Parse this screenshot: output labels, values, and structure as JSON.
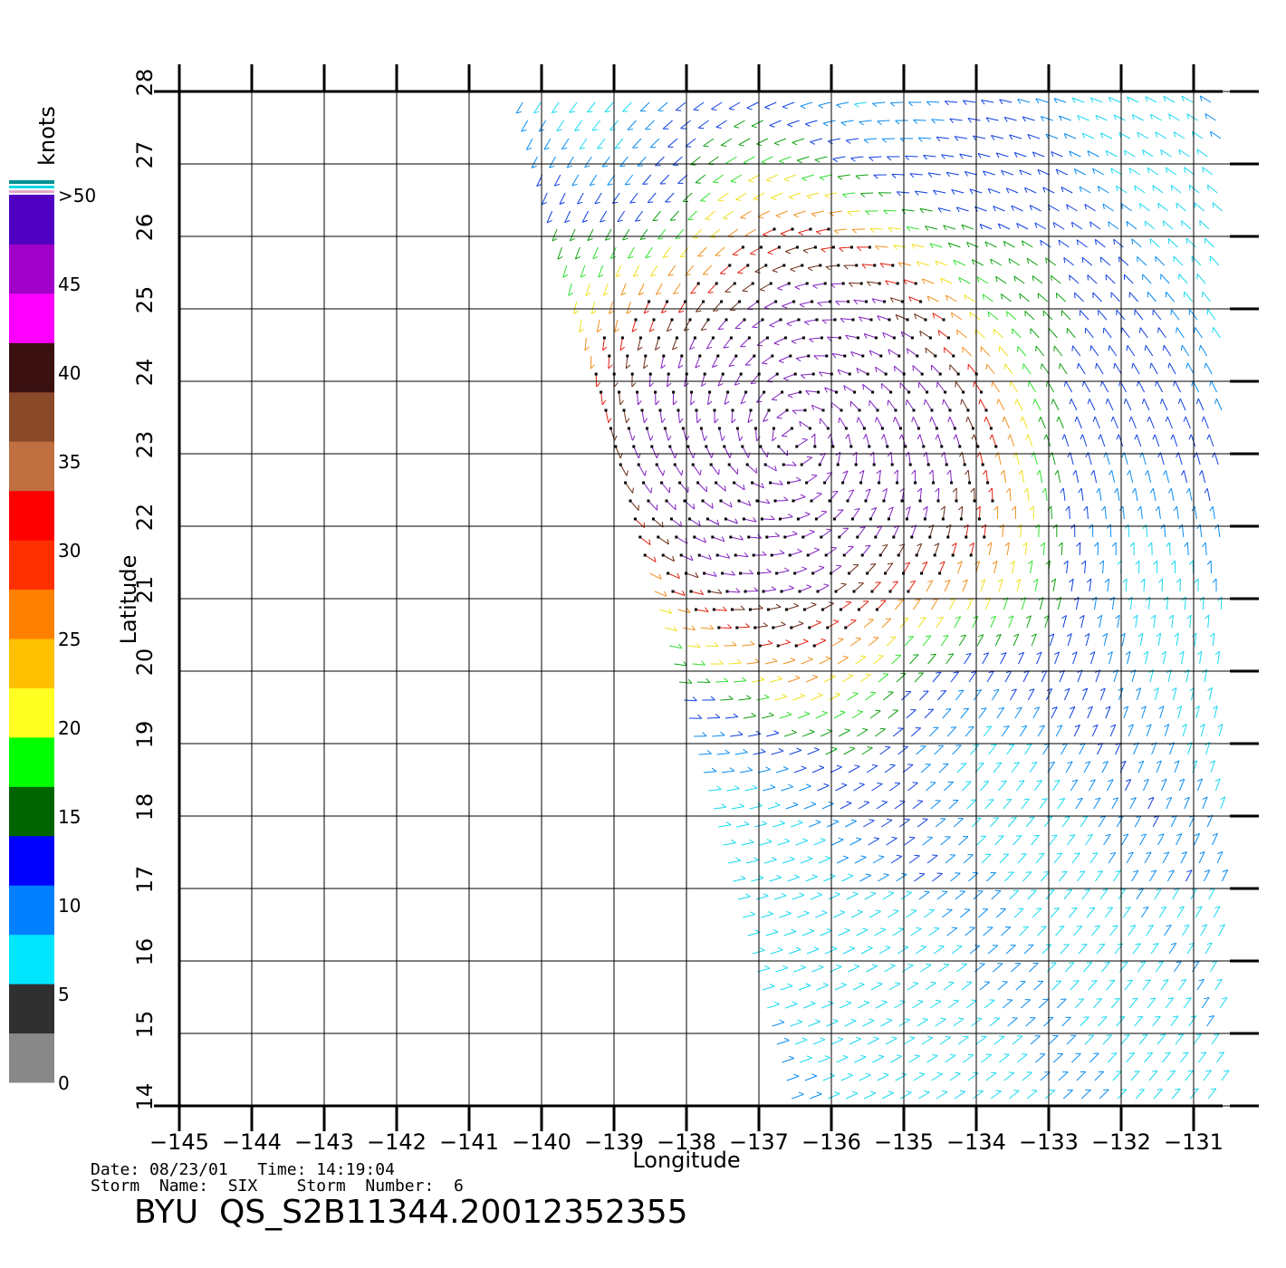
{
  "map": {
    "xlabel": "Longitude",
    "ylabel": "Latitude",
    "x_ticks": [
      "−145",
      "−144",
      "−143",
      "−142",
      "−141",
      "−140",
      "−139",
      "−138",
      "−137",
      "−136",
      "−135",
      "−134",
      "−133",
      "−132",
      "−131"
    ],
    "y_ticks": [
      "14",
      "15",
      "16",
      "17",
      "18",
      "19",
      "20",
      "21",
      "22",
      "23",
      "24",
      "25",
      "26",
      "27",
      "28"
    ],
    "xlim": [
      -145,
      -130.5
    ],
    "ylim": [
      14,
      28
    ],
    "grid": true,
    "storm_center": {
      "lon": -136.5,
      "lat": 23.2
    }
  },
  "legend": {
    "unit": "knots",
    "labels": [
      "0",
      "5",
      "10",
      "15",
      "20",
      "25",
      "30",
      "35",
      "40",
      "45",
      ">50"
    ],
    "colors": [
      "#888888",
      "#303030",
      "#00e6ff",
      "#0080ff",
      "#0000ff",
      "#006400",
      "#00ff00",
      "#ffff22",
      "#ffc000",
      "#ff8000",
      "#ff3000",
      "#ff0000",
      "#c07040",
      "#8a4a2a",
      "#3a1010",
      "#ff00ff",
      "#a000c8",
      "#5000c0"
    ]
  },
  "footer": {
    "info_line_1": "Date: 08/23/01   Time: 14:19:04",
    "info_line_2": "Storm  Name:  SIX    Storm  Number:  6",
    "product_id": "BYU  QS_S2B11344.20012352355"
  }
}
